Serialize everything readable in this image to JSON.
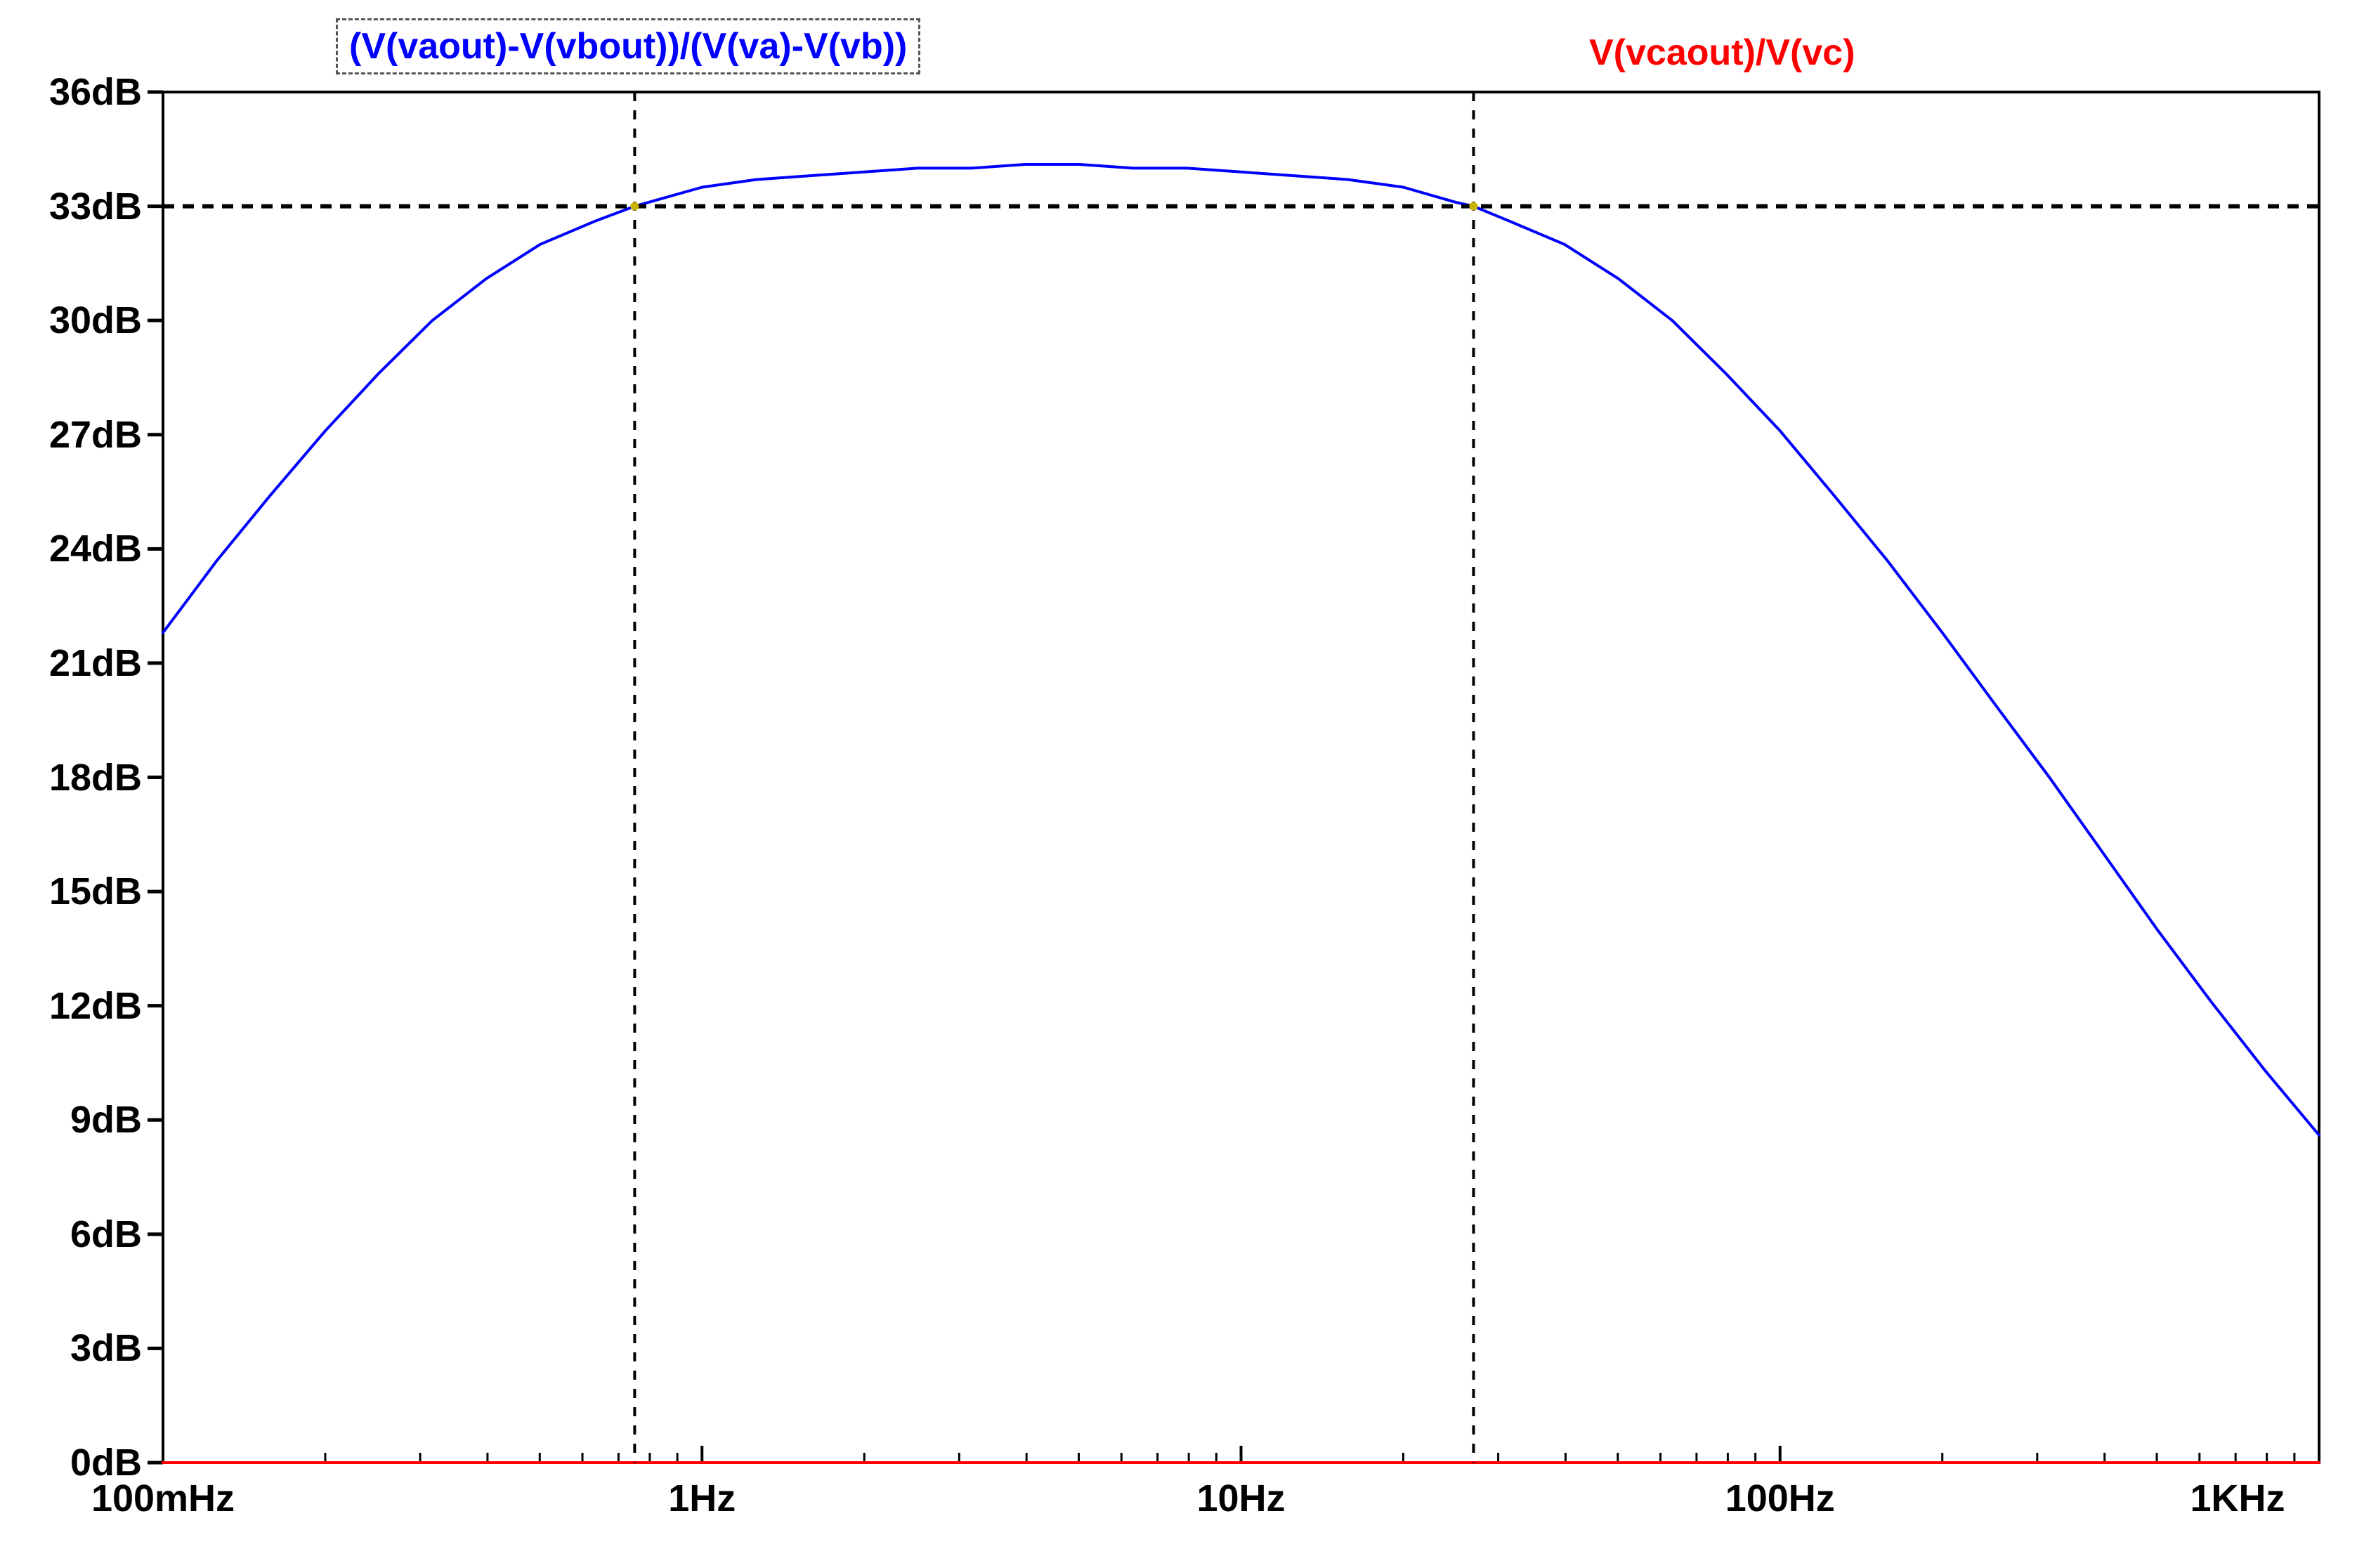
{
  "legend": {
    "trace1": {
      "label": "(V(vaout)-V(vbout))/(V(va)-V(vb))",
      "color": "#0000ff",
      "boxed": true
    },
    "trace2": {
      "label": "V(vcaout)/V(vc)",
      "color": "#ff0000",
      "boxed": false
    }
  },
  "colors": {
    "background": "#ffffff",
    "frame": "#000000",
    "cursor": "#000000",
    "crossing_marker": "#c8b400"
  },
  "chart_data": {
    "type": "line",
    "title": "",
    "x_axis": {
      "scale": "log",
      "unit": "Hz",
      "min": 0.1,
      "max": 1000,
      "tick_values": [
        0.1,
        1,
        10,
        100,
        1000
      ],
      "tick_labels": [
        "100mHz",
        "1Hz",
        "10Hz",
        "100Hz",
        "1KHz"
      ]
    },
    "y_axis": {
      "scale": "linear",
      "unit": "dB",
      "min": 0,
      "max": 36,
      "tick_step": 3,
      "tick_values": [
        36,
        33,
        30,
        27,
        24,
        21,
        18,
        15,
        12,
        9,
        6,
        3,
        0
      ],
      "tick_labels": [
        "36dB",
        "33dB",
        "30dB",
        "27dB",
        "24dB",
        "21dB",
        "18dB",
        "15dB",
        "12dB",
        "9dB",
        "6dB",
        "3dB",
        "0dB"
      ]
    },
    "series": [
      {
        "name": "(V(vaout)-V(vbout))/(V(va)-V(vb))",
        "color": "#0000ff",
        "points": [
          [
            0.1,
            21.8
          ],
          [
            0.126,
            23.7
          ],
          [
            0.158,
            25.4
          ],
          [
            0.2,
            27.1
          ],
          [
            0.251,
            28.6
          ],
          [
            0.316,
            30.0
          ],
          [
            0.398,
            31.1
          ],
          [
            0.501,
            32.0
          ],
          [
            0.631,
            32.6
          ],
          [
            0.75,
            33.0
          ],
          [
            1.0,
            33.5
          ],
          [
            1.26,
            33.7
          ],
          [
            1.58,
            33.8
          ],
          [
            2.0,
            33.9
          ],
          [
            2.51,
            34.0
          ],
          [
            3.16,
            34.0
          ],
          [
            3.98,
            34.1
          ],
          [
            5.01,
            34.1
          ],
          [
            6.31,
            34.0
          ],
          [
            7.94,
            34.0
          ],
          [
            10,
            33.9
          ],
          [
            12.6,
            33.8
          ],
          [
            15.8,
            33.7
          ],
          [
            20,
            33.5
          ],
          [
            25.1,
            33.1
          ],
          [
            27,
            33.0
          ],
          [
            31.6,
            32.6
          ],
          [
            39.8,
            32.0
          ],
          [
            50.1,
            31.1
          ],
          [
            63.1,
            30.0
          ],
          [
            79.4,
            28.6
          ],
          [
            100,
            27.1
          ],
          [
            126,
            25.4
          ],
          [
            158,
            23.7
          ],
          [
            200,
            21.8
          ],
          [
            251,
            19.9
          ],
          [
            316,
            18.0
          ],
          [
            398,
            16.0
          ],
          [
            501,
            14.0
          ],
          [
            631,
            12.1
          ],
          [
            794,
            10.3
          ],
          [
            1000,
            8.6
          ]
        ]
      },
      {
        "name": "V(vcaout)/V(vc)",
        "color": "#ff0000",
        "points": [
          [
            0.1,
            0
          ],
          [
            1000,
            0
          ]
        ]
      }
    ],
    "cursors": {
      "horizontal_dB": 33,
      "vertical_Hz": [
        0.75,
        27
      ],
      "crossings": [
        [
          0.75,
          33
        ],
        [
          27,
          33
        ]
      ]
    },
    "grid": false,
    "legend_position": "top"
  }
}
